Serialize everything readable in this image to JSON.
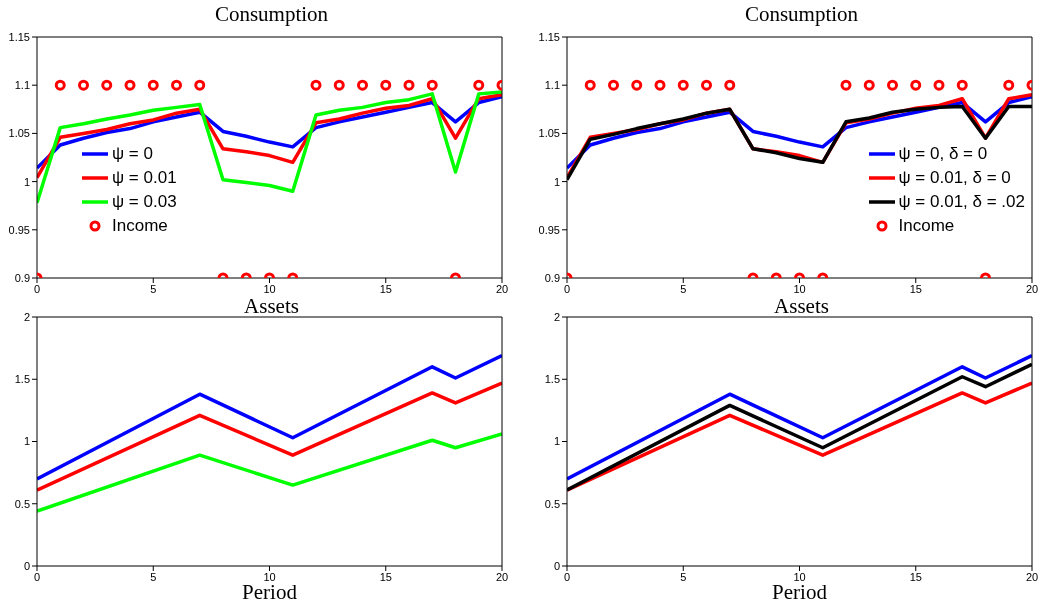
{
  "chart_data": [
    {
      "type": "line",
      "title": "Consumption",
      "xlim": [
        0,
        20
      ],
      "xticks": [
        0,
        5,
        10,
        15,
        20
      ],
      "ylim": [
        0.9,
        1.15
      ],
      "yticks": [
        0.9,
        0.95,
        1,
        1.05,
        1.1,
        1.15
      ],
      "grid": false,
      "legend": "bottom left",
      "marker": "none",
      "line_style": "solid",
      "x": [
        0,
        1,
        2,
        3,
        4,
        5,
        6,
        7,
        8,
        9,
        10,
        11,
        12,
        13,
        14,
        15,
        16,
        17,
        18,
        19,
        20
      ],
      "series": [
        {
          "name": "ψ = 0",
          "color": "#0000ff",
          "values": [
            1.014,
            1.038,
            1.045,
            1.051,
            1.055,
            1.062,
            1.067,
            1.072,
            1.052,
            1.047,
            1.041,
            1.036,
            1.056,
            1.062,
            1.067,
            1.072,
            1.077,
            1.082,
            1.062,
            1.082,
            1.088
          ]
        },
        {
          "name": "ψ = 0.01",
          "color": "#ff0000",
          "values": [
            1.004,
            1.046,
            1.05,
            1.054,
            1.06,
            1.064,
            1.071,
            1.075,
            1.034,
            1.031,
            1.027,
            1.02,
            1.061,
            1.065,
            1.071,
            1.076,
            1.079,
            1.086,
            1.045,
            1.086,
            1.09
          ]
        },
        {
          "name": "ψ = 0.03",
          "color": "#00ff00",
          "values": [
            0.978,
            1.056,
            1.06,
            1.065,
            1.069,
            1.074,
            1.077,
            1.08,
            1.002,
            0.999,
            0.996,
            0.99,
            1.069,
            1.074,
            1.077,
            1.082,
            1.085,
            1.091,
            1.01,
            1.091,
            1.093
          ]
        },
        {
          "name": "Income",
          "type": "scatter",
          "marker": "circle",
          "color": "#ff0000",
          "values": [
            0.9,
            1.1,
            1.1,
            1.1,
            1.1,
            1.1,
            1.1,
            1.1,
            0.9,
            0.9,
            0.9,
            0.9,
            1.1,
            1.1,
            1.1,
            1.1,
            1.1,
            1.1,
            0.9,
            1.1,
            1.1
          ]
        }
      ]
    },
    {
      "type": "line",
      "title": "Consumption",
      "xlim": [
        0,
        20
      ],
      "xticks": [
        0,
        5,
        10,
        15,
        20
      ],
      "ylim": [
        0.9,
        1.15
      ],
      "yticks": [
        0.9,
        0.95,
        1,
        1.05,
        1.1,
        1.15
      ],
      "grid": false,
      "legend": "bottom right",
      "marker": "none",
      "line_style": "solid",
      "x": [
        0,
        1,
        2,
        3,
        4,
        5,
        6,
        7,
        8,
        9,
        10,
        11,
        12,
        13,
        14,
        15,
        16,
        17,
        18,
        19,
        20
      ],
      "series": [
        {
          "name": "ψ = 0, δ = 0",
          "color": "#0000ff",
          "values": [
            1.014,
            1.038,
            1.045,
            1.051,
            1.055,
            1.062,
            1.067,
            1.072,
            1.052,
            1.047,
            1.041,
            1.036,
            1.056,
            1.062,
            1.067,
            1.072,
            1.077,
            1.082,
            1.062,
            1.082,
            1.088
          ]
        },
        {
          "name": "ψ = 0.01, δ = 0",
          "color": "#ff0000",
          "values": [
            1.004,
            1.046,
            1.05,
            1.054,
            1.06,
            1.064,
            1.071,
            1.075,
            1.034,
            1.031,
            1.027,
            1.02,
            1.061,
            1.065,
            1.071,
            1.076,
            1.079,
            1.086,
            1.045,
            1.086,
            1.09
          ]
        },
        {
          "name": "ψ = 0.01, δ = .02",
          "color": "#000000",
          "values": [
            1.002,
            1.044,
            1.049,
            1.055,
            1.06,
            1.065,
            1.071,
            1.075,
            1.034,
            1.03,
            1.024,
            1.02,
            1.062,
            1.066,
            1.072,
            1.075,
            1.077,
            1.078,
            1.045,
            1.078,
            1.078
          ]
        },
        {
          "name": "Income",
          "type": "scatter",
          "marker": "circle",
          "color": "#ff0000",
          "values": [
            0.9,
            1.1,
            1.1,
            1.1,
            1.1,
            1.1,
            1.1,
            1.1,
            0.9,
            0.9,
            0.9,
            0.9,
            1.1,
            1.1,
            1.1,
            1.1,
            1.1,
            1.1,
            0.9,
            1.1,
            1.1
          ]
        }
      ]
    },
    {
      "type": "line",
      "title": "Assets",
      "xlabel": "Period",
      "xlim": [
        0,
        20
      ],
      "xticks": [
        0,
        5,
        10,
        15,
        20
      ],
      "ylim": [
        0,
        2
      ],
      "yticks": [
        0,
        0.5,
        1,
        1.5,
        2
      ],
      "grid": false,
      "legend": false,
      "marker": "none",
      "line_style": "solid",
      "x": [
        0,
        7,
        11,
        17,
        18,
        20
      ],
      "series": [
        {
          "color": "#0000ff",
          "values": [
            0.7,
            1.38,
            1.03,
            1.6,
            1.51,
            1.69
          ]
        },
        {
          "color": "#ff0000",
          "values": [
            0.61,
            1.21,
            0.89,
            1.39,
            1.31,
            1.47
          ]
        },
        {
          "color": "#00ff00",
          "values": [
            0.44,
            0.89,
            0.65,
            1.01,
            0.95,
            1.06
          ]
        }
      ]
    },
    {
      "type": "line",
      "title": "Assets",
      "xlabel": "Period",
      "xlim": [
        0,
        20
      ],
      "xticks": [
        0,
        5,
        10,
        15,
        20
      ],
      "ylim": [
        0,
        2
      ],
      "yticks": [
        0,
        0.5,
        1,
        1.5,
        2
      ],
      "grid": false,
      "legend": false,
      "marker": "none",
      "line_style": "solid",
      "x": [
        0,
        7,
        11,
        17,
        18,
        20
      ],
      "series": [
        {
          "color": "#0000ff",
          "values": [
            0.7,
            1.38,
            1.03,
            1.6,
            1.51,
            1.69
          ]
        },
        {
          "color": "#ff0000",
          "values": [
            0.61,
            1.21,
            0.89,
            1.39,
            1.31,
            1.47
          ]
        },
        {
          "color": "#000000",
          "values": [
            0.61,
            1.29,
            0.95,
            1.52,
            1.44,
            1.62
          ]
        }
      ]
    }
  ]
}
